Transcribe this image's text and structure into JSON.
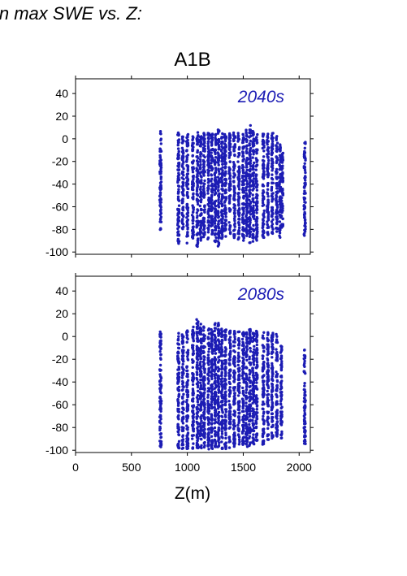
{
  "page": {
    "header_text": "in max SWE vs. Z:"
  },
  "chart_data": {
    "type": "scatter",
    "title": "A1B",
    "xlabel": "Z(m)",
    "xlim": [
      0,
      2100
    ],
    "x_ticks": [
      0,
      500,
      1000,
      1500,
      2000
    ],
    "color": "#1c1cb4",
    "panels": [
      {
        "label": "2040s",
        "ylim": [
          -100,
          50
        ],
        "y_ticks": [
          40,
          20,
          0,
          -20,
          -40,
          -60,
          -80,
          -100
        ],
        "ylabel": "",
        "columns": [
          {
            "x": 760,
            "ymin": -81,
            "ymax": 7
          },
          {
            "x": 920,
            "ymin": -95,
            "ymax": 6
          },
          {
            "x": 960,
            "ymin": -80,
            "ymax": 5
          },
          {
            "x": 1000,
            "ymin": -93,
            "ymax": 5
          },
          {
            "x": 1050,
            "ymin": -88,
            "ymax": 4
          },
          {
            "x": 1090,
            "ymin": -96,
            "ymax": 6
          },
          {
            "x": 1120,
            "ymin": -90,
            "ymax": 5
          },
          {
            "x": 1150,
            "ymin": -88,
            "ymax": 6
          },
          {
            "x": 1190,
            "ymin": -89,
            "ymax": 5
          },
          {
            "x": 1220,
            "ymin": -87,
            "ymax": 7
          },
          {
            "x": 1250,
            "ymin": -92,
            "ymax": 6
          },
          {
            "x": 1280,
            "ymin": -95,
            "ymax": 9
          },
          {
            "x": 1310,
            "ymin": -88,
            "ymax": 6
          },
          {
            "x": 1340,
            "ymin": -87,
            "ymax": 5
          },
          {
            "x": 1380,
            "ymin": -86,
            "ymax": 5
          },
          {
            "x": 1420,
            "ymin": -88,
            "ymax": 6
          },
          {
            "x": 1460,
            "ymin": -90,
            "ymax": 5
          },
          {
            "x": 1500,
            "ymin": -90,
            "ymax": 6
          },
          {
            "x": 1530,
            "ymin": -89,
            "ymax": 8
          },
          {
            "x": 1560,
            "ymin": -92,
            "ymax": 12
          },
          {
            "x": 1590,
            "ymin": -93,
            "ymax": 7
          },
          {
            "x": 1620,
            "ymin": -91,
            "ymax": 6
          },
          {
            "x": 1680,
            "ymin": -88,
            "ymax": 5
          },
          {
            "x": 1720,
            "ymin": -85,
            "ymax": 5
          },
          {
            "x": 1760,
            "ymin": -84,
            "ymax": 5
          },
          {
            "x": 1800,
            "ymin": -82,
            "ymax": 5
          },
          {
            "x": 1830,
            "ymin": -88,
            "ymax": -5
          },
          {
            "x": 1850,
            "ymin": -80,
            "ymax": -10
          },
          {
            "x": 2050,
            "ymin": -86,
            "ymax": -2
          }
        ]
      },
      {
        "label": "2080s",
        "ylim": [
          -100,
          50
        ],
        "y_ticks": [
          40,
          20,
          0,
          -20,
          -40,
          -60,
          -80,
          -100
        ],
        "ylabel": "",
        "columns": [
          {
            "x": 760,
            "ymin": -98,
            "ymax": 6
          },
          {
            "x": 920,
            "ymin": -99,
            "ymax": 4
          },
          {
            "x": 960,
            "ymin": -99,
            "ymax": 2
          },
          {
            "x": 1000,
            "ymin": -99,
            "ymax": 6
          },
          {
            "x": 1050,
            "ymin": -99,
            "ymax": 11
          },
          {
            "x": 1090,
            "ymin": -99,
            "ymax": 16
          },
          {
            "x": 1120,
            "ymin": -99,
            "ymax": 12
          },
          {
            "x": 1150,
            "ymin": -99,
            "ymax": 10
          },
          {
            "x": 1190,
            "ymin": -99,
            "ymax": 8
          },
          {
            "x": 1220,
            "ymin": -99,
            "ymax": 9
          },
          {
            "x": 1250,
            "ymin": -99,
            "ymax": 12
          },
          {
            "x": 1280,
            "ymin": -99,
            "ymax": 13
          },
          {
            "x": 1310,
            "ymin": -99,
            "ymax": 9
          },
          {
            "x": 1340,
            "ymin": -99,
            "ymax": 6
          },
          {
            "x": 1380,
            "ymin": -98,
            "ymax": 5
          },
          {
            "x": 1420,
            "ymin": -97,
            "ymax": 5
          },
          {
            "x": 1460,
            "ymin": -95,
            "ymax": 6
          },
          {
            "x": 1500,
            "ymin": -96,
            "ymax": 4
          },
          {
            "x": 1530,
            "ymin": -97,
            "ymax": 5
          },
          {
            "x": 1560,
            "ymin": -96,
            "ymax": 7
          },
          {
            "x": 1590,
            "ymin": -95,
            "ymax": 6
          },
          {
            "x": 1620,
            "ymin": -93,
            "ymax": 5
          },
          {
            "x": 1680,
            "ymin": -95,
            "ymax": 4
          },
          {
            "x": 1720,
            "ymin": -92,
            "ymax": 5
          },
          {
            "x": 1760,
            "ymin": -90,
            "ymax": 3
          },
          {
            "x": 1800,
            "ymin": -88,
            "ymax": 2
          },
          {
            "x": 1840,
            "ymin": -90,
            "ymax": -8
          },
          {
            "x": 2050,
            "ymin": -96,
            "ymax": -10
          }
        ]
      }
    ]
  }
}
